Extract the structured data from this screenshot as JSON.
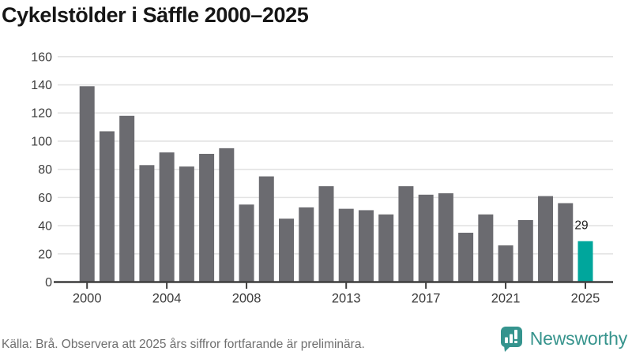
{
  "chart_data": {
    "type": "bar",
    "title": "Cykelstölder i Säffle 2000–2025",
    "categories": [
      "2000",
      "2001",
      "2002",
      "2003",
      "2004",
      "2005",
      "2006",
      "2007",
      "2008",
      "2009",
      "2010",
      "2011",
      "2012",
      "2013",
      "2014",
      "2015",
      "2016",
      "2017",
      "2018",
      "2019",
      "2020",
      "2021",
      "2022",
      "2023",
      "2024",
      "2025"
    ],
    "values": [
      139,
      107,
      118,
      83,
      92,
      82,
      91,
      95,
      55,
      75,
      45,
      53,
      68,
      52,
      51,
      48,
      68,
      62,
      63,
      35,
      48,
      26,
      44,
      61,
      56,
      29
    ],
    "xlabel": "",
    "ylabel": "",
    "ylim": [
      0,
      160
    ],
    "y_ticks": [
      0,
      20,
      40,
      60,
      80,
      100,
      120,
      140,
      160
    ],
    "x_tick_labels": [
      "2000",
      "2004",
      "2008",
      "2013",
      "2017",
      "2021",
      "2025"
    ],
    "grid": "horizontal",
    "legend": "none",
    "highlight": {
      "category": "2025",
      "label": "29"
    },
    "colors": {
      "bar": "#6b6b70",
      "highlight_bar": "#00a69c",
      "gridline": "#e3e3e3",
      "axis_line": "#3f3f3f",
      "tick_label": "#3d3d3d",
      "annotation": "#1d1d1d"
    }
  },
  "footer": {
    "source_note": "Källa: Brå. Observera att 2025 års siffror fortfarande är preliminära.",
    "brand": "Newsworthy",
    "brand_color": "#37948d"
  }
}
